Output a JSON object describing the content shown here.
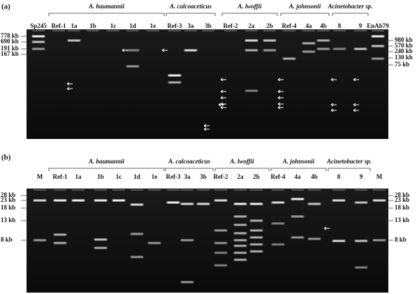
{
  "panels": [
    {
      "label": "(a)",
      "groups": [
        "A. baumannii",
        "A. calcoaceticus",
        "A. lwoffii",
        "A. johnsonii",
        "Acinetobacter sp."
      ],
      "lanes": [
        "Sp245",
        "Ref-1",
        "1a",
        "1b",
        "1c",
        "1d",
        "1e",
        "Ref-3",
        "3a",
        "3b",
        "Ref-2",
        "2a",
        "2b",
        "Ref-4",
        "4a",
        "4b",
        "8",
        "9",
        "EnAb79"
      ],
      "left_sizes": [
        "778 kb",
        "690 kb",
        "191 kb",
        "167 kb"
      ],
      "right_sizes": [
        "980 kb",
        "570 kb",
        "240 kb",
        "130 kb",
        "75 kb"
      ]
    },
    {
      "label": "(b)",
      "groups": [
        "A. baumannii",
        "A. calcoaceticus",
        "A. lwoffii",
        "A. johnsonii",
        "Acinetobacter sp."
      ],
      "lanes": [
        "M",
        "Ref-1",
        "1a",
        "1b",
        "1c",
        "1d",
        "1e",
        "Ref-3",
        "3a",
        "3b",
        "Ref-2",
        "2a",
        "2b",
        "Ref-4",
        "4a",
        "4b",
        "8",
        "9",
        "M"
      ],
      "left_sizes": [
        "28 kb",
        "23 kb",
        "18 kb",
        "13 kb",
        "8 kb"
      ],
      "right_sizes": [
        "28 kb",
        "23 kb",
        "18 kb",
        "13 kb",
        "8 kb"
      ]
    }
  ]
}
